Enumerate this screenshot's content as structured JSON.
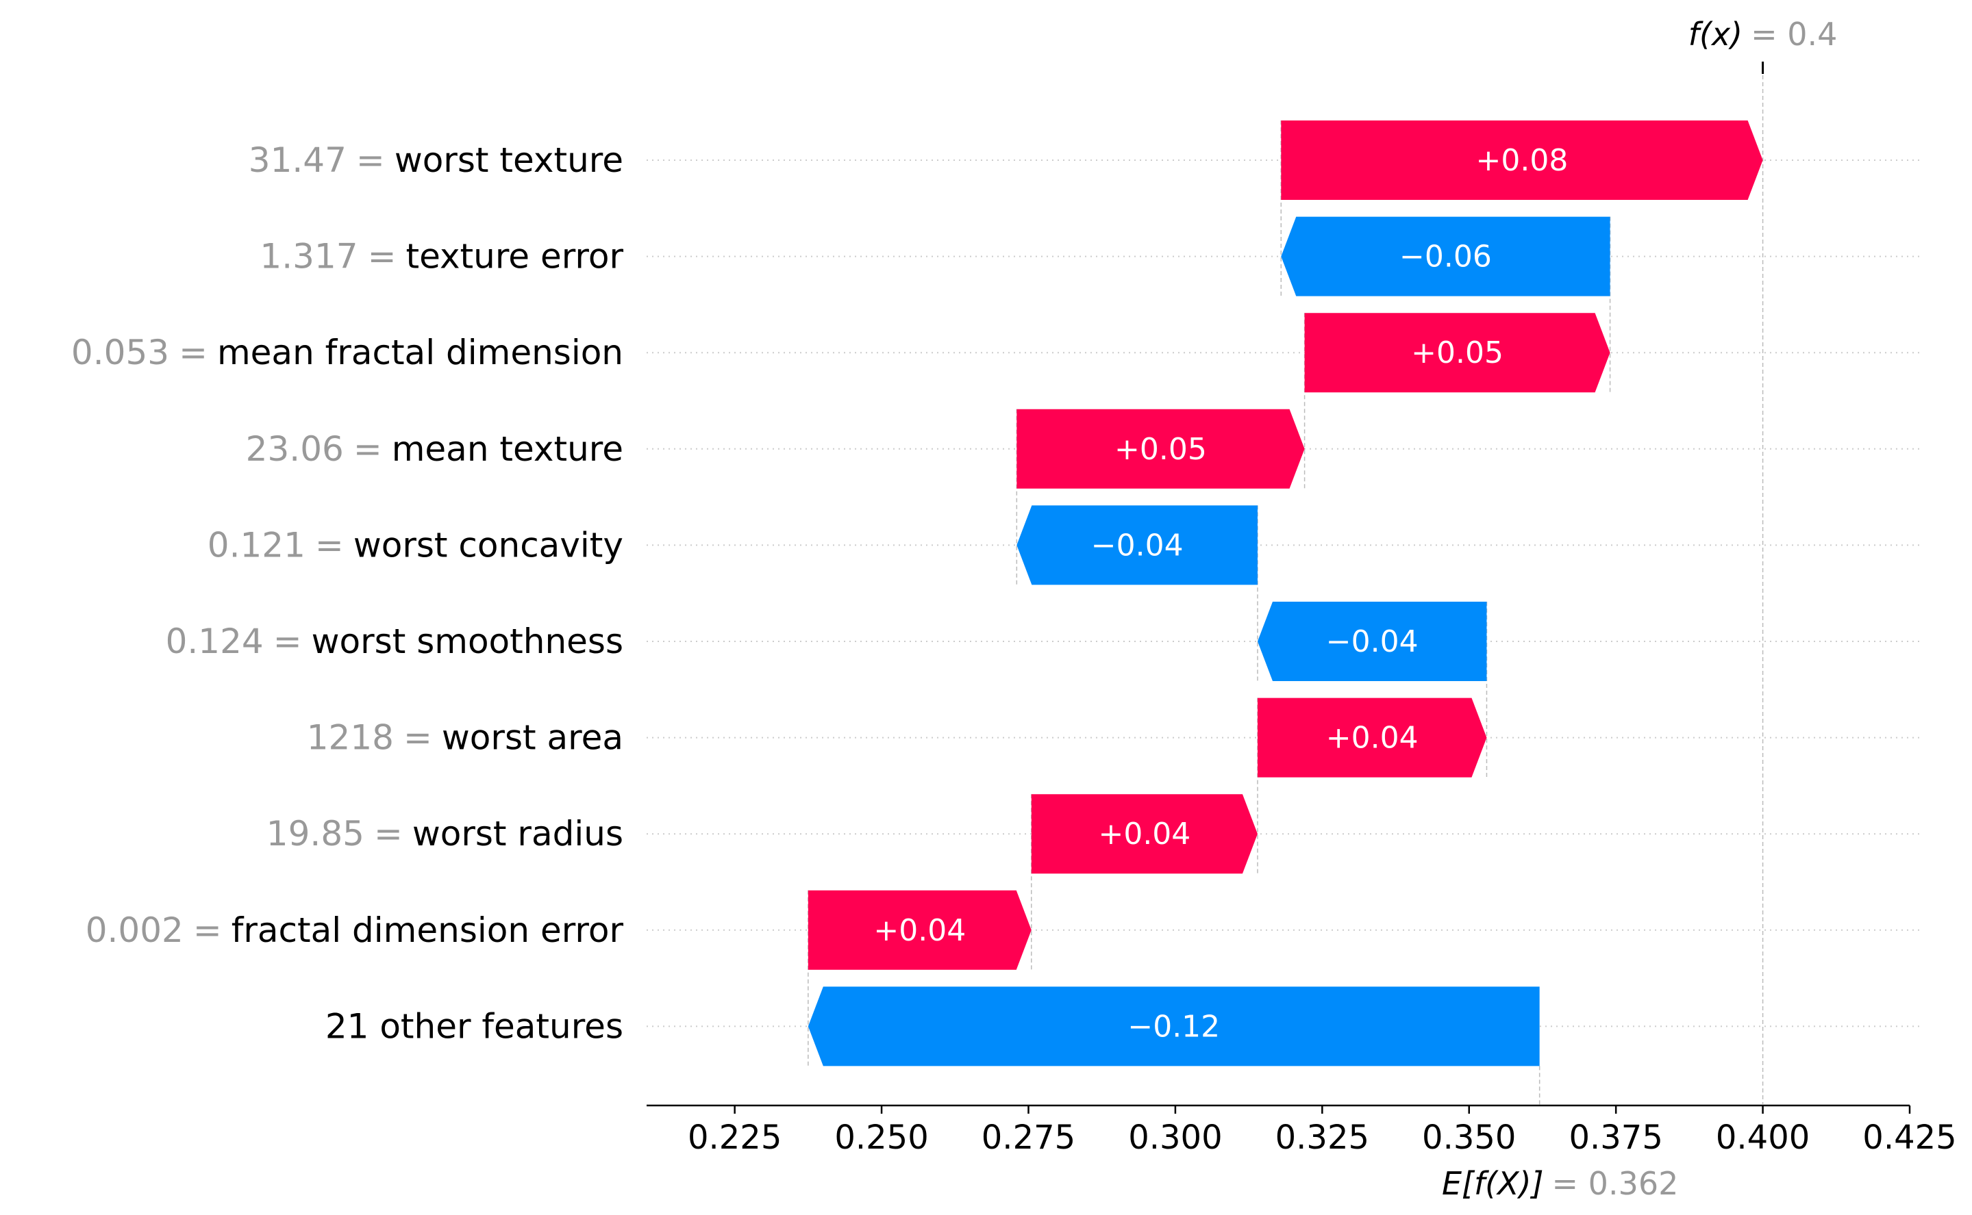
{
  "chart_data": {
    "type": "waterfall",
    "title": "",
    "xlabel": "",
    "ylabel": "",
    "xlim": [
      0.21,
      0.425
    ],
    "xticks": [
      "0.225",
      "0.250",
      "0.275",
      "0.300",
      "0.325",
      "0.350",
      "0.375",
      "0.400",
      "0.425"
    ],
    "xtick_values": [
      0.225,
      0.25,
      0.275,
      0.3,
      0.325,
      0.35,
      0.375,
      0.4,
      0.425
    ],
    "base_value": 0.362,
    "base_value_label": "E[f(X)]",
    "base_value_text": "= 0.362",
    "output_value": 0.4,
    "output_value_label": "f(x)",
    "output_value_text": "= 0.4",
    "positive_color": "#ff0051",
    "negative_color": "#008bfb",
    "grid": false,
    "features": [
      {
        "value": "31.47",
        "name": "worst texture",
        "eq": "=",
        "label": "+0.08",
        "start": 0.318,
        "end": 0.4
      },
      {
        "value": "1.317",
        "name": "texture error",
        "eq": "=",
        "label": "−0.06",
        "start": 0.374,
        "end": 0.318
      },
      {
        "value": "0.053",
        "name": "mean fractal dimension",
        "eq": "=",
        "label": "+0.05",
        "start": 0.322,
        "end": 0.374
      },
      {
        "value": "23.06",
        "name": "mean texture",
        "eq": "=",
        "label": "+0.05",
        "start": 0.273,
        "end": 0.322
      },
      {
        "value": "0.121",
        "name": "worst concavity",
        "eq": "=",
        "label": "−0.04",
        "start": 0.314,
        "end": 0.273
      },
      {
        "value": "0.124",
        "name": "worst smoothness",
        "eq": "=",
        "label": "−0.04",
        "start": 0.353,
        "end": 0.314
      },
      {
        "value": "1218",
        "name": "worst area",
        "eq": "=",
        "label": "+0.04",
        "start": 0.314,
        "end": 0.353
      },
      {
        "value": "19.85",
        "name": "worst radius",
        "eq": "=",
        "label": "+0.04",
        "start": 0.2755,
        "end": 0.314
      },
      {
        "value": "0.002",
        "name": "fractal dimension error",
        "eq": "=",
        "label": "+0.04",
        "start": 0.2375,
        "end": 0.2755
      },
      {
        "value": "",
        "name": "21 other features",
        "eq": "",
        "label": "−0.12",
        "start": 0.362,
        "end": 0.2375
      }
    ]
  }
}
